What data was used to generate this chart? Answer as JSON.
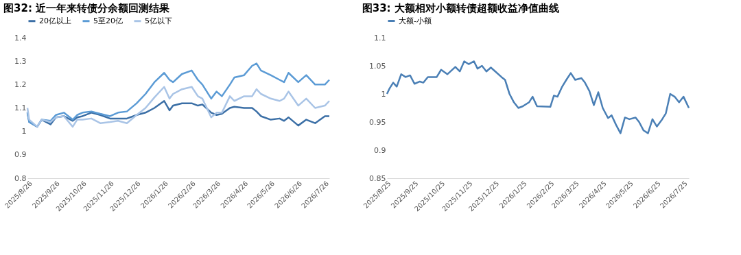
{
  "chart_data": [
    {
      "type": "line",
      "title": "图32: 近一年来转债分余额回测结果",
      "legend": "top",
      "grid": false,
      "x": [
        "2025-08-25",
        "2025-08-27",
        "2025-09-05",
        "2025-09-10",
        "2025-09-20",
        "2025-09-26",
        "2025-10-05",
        "2025-10-15",
        "2025-10-20",
        "2025-10-26",
        "2025-11-05",
        "2025-11-15",
        "2025-11-26",
        "2025-12-05",
        "2025-12-15",
        "2025-12-26",
        "2026-01-05",
        "2026-01-15",
        "2026-01-26",
        "2026-02-01",
        "2026-02-05",
        "2026-02-15",
        "2026-02-26",
        "2026-03-05",
        "2026-03-10",
        "2026-03-20",
        "2026-03-26",
        "2026-04-01",
        "2026-04-10",
        "2026-04-15",
        "2026-04-26",
        "2026-05-05",
        "2026-05-10",
        "2026-05-15",
        "2026-05-26",
        "2026-06-05",
        "2026-06-10",
        "2026-06-15",
        "2026-06-26",
        "2026-07-05",
        "2026-07-15",
        "2026-07-26",
        "2026-07-31"
      ],
      "series": [
        {
          "name": "20亿以上",
          "color": "#3b6fa6",
          "values": [
            1.08,
            1.04,
            1.02,
            1.05,
            1.03,
            1.06,
            1.065,
            1.045,
            1.06,
            1.065,
            1.08,
            1.07,
            1.055,
            1.055,
            1.055,
            1.07,
            1.08,
            1.1,
            1.13,
            1.09,
            1.11,
            1.12,
            1.12,
            1.11,
            1.115,
            1.08,
            1.07,
            1.075,
            1.1,
            1.105,
            1.1,
            1.1,
            1.085,
            1.065,
            1.05,
            1.055,
            1.045,
            1.06,
            1.025,
            1.05,
            1.035,
            1.065,
            1.065
          ]
        },
        {
          "name": "5至20亿",
          "color": "#5b9bd5",
          "values": [
            1.08,
            1.04,
            1.02,
            1.05,
            1.045,
            1.07,
            1.08,
            1.05,
            1.07,
            1.08,
            1.085,
            1.075,
            1.065,
            1.08,
            1.085,
            1.12,
            1.16,
            1.21,
            1.25,
            1.22,
            1.21,
            1.245,
            1.26,
            1.22,
            1.2,
            1.14,
            1.17,
            1.15,
            1.2,
            1.23,
            1.24,
            1.28,
            1.29,
            1.26,
            1.24,
            1.22,
            1.21,
            1.25,
            1.21,
            1.24,
            1.2,
            1.2,
            1.22
          ]
        },
        {
          "name": "5亿以下",
          "color": "#a9c4e6",
          "values": [
            1.1,
            1.05,
            1.02,
            1.05,
            1.04,
            1.06,
            1.065,
            1.02,
            1.05,
            1.05,
            1.055,
            1.035,
            1.04,
            1.045,
            1.035,
            1.07,
            1.1,
            1.145,
            1.19,
            1.14,
            1.16,
            1.18,
            1.19,
            1.15,
            1.14,
            1.06,
            1.08,
            1.08,
            1.15,
            1.13,
            1.15,
            1.15,
            1.18,
            1.16,
            1.14,
            1.13,
            1.14,
            1.17,
            1.11,
            1.14,
            1.1,
            1.11,
            1.13
          ]
        }
      ],
      "xlim": [
        "2025-08-25",
        "2026-07-31"
      ],
      "xticks": [
        {
          "value": "2025-08-26",
          "label": "2025/8/26"
        },
        {
          "value": "2025-09-26",
          "label": "2025/9/26"
        },
        {
          "value": "2025-10-26",
          "label": "2025/10/26"
        },
        {
          "value": "2025-11-26",
          "label": "2025/11/26"
        },
        {
          "value": "2025-12-26",
          "label": "2025/12/26"
        },
        {
          "value": "2026-01-26",
          "label": "2026/1/26"
        },
        {
          "value": "2026-02-26",
          "label": "2026/2/26"
        },
        {
          "value": "2026-03-26",
          "label": "2026/3/26"
        },
        {
          "value": "2026-04-26",
          "label": "2026/4/26"
        },
        {
          "value": "2026-05-26",
          "label": "2026/5/26"
        },
        {
          "value": "2026-06-26",
          "label": "2026/6/26"
        },
        {
          "value": "2026-07-26",
          "label": "2026/7/26"
        }
      ],
      "ylim": [
        0.8,
        1.4
      ],
      "yticks": [
        0.8,
        0.9,
        1,
        1.1,
        1.2,
        1.3,
        1.4
      ]
    },
    {
      "type": "line",
      "title": "图33: 大额相对小额转债超额收益净值曲线",
      "legend": "top",
      "grid": false,
      "x": [
        "2025-08-25",
        "2025-08-28",
        "2025-09-01",
        "2025-09-05",
        "2025-09-10",
        "2025-09-15",
        "2025-09-20",
        "2025-09-25",
        "2025-10-01",
        "2025-10-05",
        "2025-10-10",
        "2025-10-20",
        "2025-10-25",
        "2025-11-01",
        "2025-11-10",
        "2025-11-15",
        "2025-11-20",
        "2025-11-25",
        "2025-12-01",
        "2025-12-05",
        "2025-12-10",
        "2025-12-15",
        "2025-12-20",
        "2025-12-25",
        "2026-01-01",
        "2026-01-05",
        "2026-01-10",
        "2026-01-15",
        "2026-01-20",
        "2026-01-25",
        "2026-02-01",
        "2026-02-05",
        "2026-02-10",
        "2026-02-25",
        "2026-03-01",
        "2026-03-05",
        "2026-03-10",
        "2026-03-15",
        "2026-03-20",
        "2026-03-25",
        "2026-04-01",
        "2026-04-05",
        "2026-04-10",
        "2026-04-15",
        "2026-04-20",
        "2026-04-25",
        "2026-05-01",
        "2026-05-05",
        "2026-05-10",
        "2026-05-15",
        "2026-05-20",
        "2026-05-25",
        "2026-06-01",
        "2026-06-05",
        "2026-06-10",
        "2026-06-15",
        "2026-06-20",
        "2026-06-25",
        "2026-07-01",
        "2026-07-05",
        "2026-07-10",
        "2026-07-15",
        "2026-07-20",
        "2026-07-25",
        "2026-07-31"
      ],
      "series": [
        {
          "name": "大额-小额",
          "color": "#4a7fb5",
          "values": [
            1.0,
            1.01,
            1.02,
            1.013,
            1.035,
            1.03,
            1.033,
            1.018,
            1.022,
            1.02,
            1.03,
            1.03,
            1.043,
            1.035,
            1.048,
            1.04,
            1.058,
            1.053,
            1.058,
            1.045,
            1.05,
            1.04,
            1.047,
            1.04,
            1.03,
            1.025,
            1.0,
            0.985,
            0.975,
            0.978,
            0.985,
            0.995,
            0.978,
            0.977,
            0.997,
            0.995,
            1.012,
            1.025,
            1.037,
            1.025,
            1.028,
            1.02,
            1.005,
            0.98,
            1.003,
            0.975,
            0.957,
            0.962,
            0.945,
            0.93,
            0.958,
            0.955,
            0.958,
            0.95,
            0.935,
            0.93,
            0.955,
            0.942,
            0.955,
            0.965,
            1.0,
            0.995,
            0.985,
            0.995,
            0.975
          ]
        }
      ],
      "xlim": [
        "2025-08-25",
        "2026-07-31"
      ],
      "xticks": [
        {
          "value": "2025-08-25",
          "label": "2025/8/25"
        },
        {
          "value": "2025-09-25",
          "label": "2025/9/25"
        },
        {
          "value": "2025-10-25",
          "label": "2025/10/25"
        },
        {
          "value": "2025-11-25",
          "label": "2025/11/25"
        },
        {
          "value": "2025-12-25",
          "label": "2025/12/25"
        },
        {
          "value": "2026-01-25",
          "label": "2026/1/25"
        },
        {
          "value": "2026-02-25",
          "label": "2026/2/25"
        },
        {
          "value": "2026-03-25",
          "label": "2026/3/25"
        },
        {
          "value": "2026-04-25",
          "label": "2026/4/25"
        },
        {
          "value": "2026-05-25",
          "label": "2026/5/25"
        },
        {
          "value": "2026-06-25",
          "label": "2026/6/25"
        },
        {
          "value": "2026-07-25",
          "label": "2026/7/25"
        }
      ],
      "ylim": [
        0.85,
        1.1
      ],
      "yticks": [
        0.85,
        0.9,
        0.95,
        1,
        1.05,
        1.1
      ]
    }
  ]
}
